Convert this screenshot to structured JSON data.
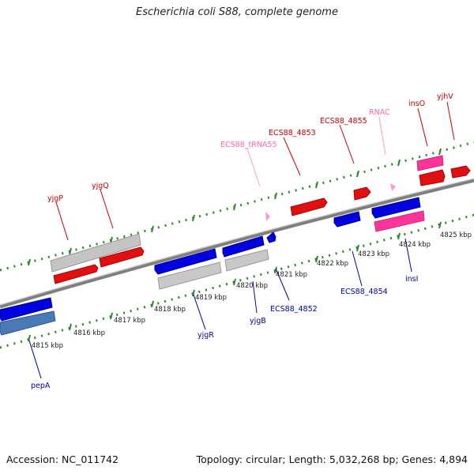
{
  "title": "Escherichia coli S88, complete genome",
  "footer": {
    "accession": "Accession: NC_011742",
    "summary": "Topology: circular; Length: 5,032,268 bp; Genes: 4,894"
  },
  "colors": {
    "forward_gene": "#e00000",
    "reverse_gene": "#0000e0",
    "pseudo": "#c8c8c8",
    "rna": "#ff4da6",
    "trna": "#ff99cc",
    "backbone": "#8a8a8a",
    "tick": "#2a8a2a",
    "forward_label": "#cc0000",
    "reverse_label": "#0000aa",
    "rna_label": "#ff66aa"
  },
  "scale_labels": [
    "4815 kbp",
    "4816 kbp",
    "4817 kbp",
    "4818 kbp",
    "4819 kbp",
    "4820 kbp",
    "4821 kbp",
    "4822 kbp",
    "4823 kbp",
    "4824 kbp",
    "4825 kbp"
  ],
  "forward_labels": [
    "yjgP",
    "yjgQ",
    "ECS88_tRNA55",
    "ECS88_4853",
    "ECS88_4855",
    "RNAC",
    "insO",
    "yjhV"
  ],
  "reverse_labels": [
    "pepA",
    "yjgR",
    "yjgB",
    "ECS88_4852",
    "ECS88_4854",
    "insI"
  ]
}
